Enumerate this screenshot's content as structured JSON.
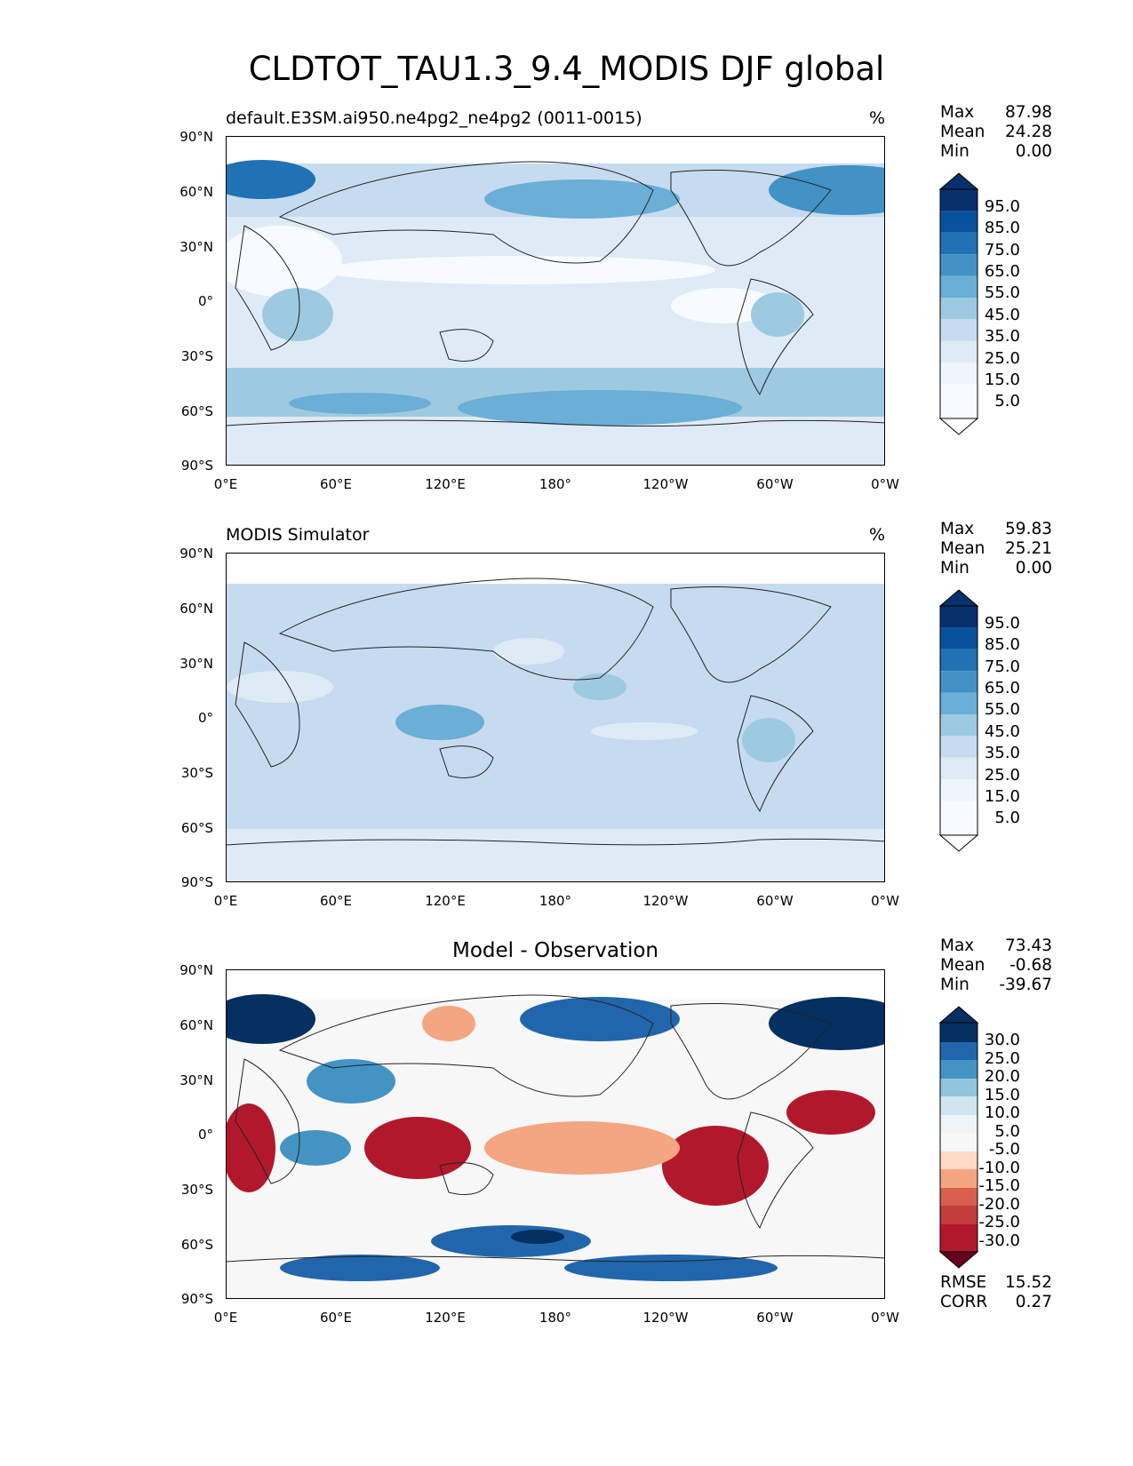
{
  "figure": {
    "title": "CLDTOT_TAU1.3_9.4_MODIS DJF global"
  },
  "axes": {
    "lat_labels": [
      "90°N",
      "60°N",
      "30°N",
      "0°",
      "30°S",
      "60°S",
      "90°S"
    ],
    "lon_labels": [
      "0°E",
      "60°E",
      "120°E",
      "180°",
      "120°W",
      "60°W",
      "0°W"
    ]
  },
  "panels": [
    {
      "title": "default.E3SM.ai950.ne4pg2_ne4pg2 (0011-0015)",
      "unit": "%",
      "stats": [
        {
          "label": "Max",
          "value": "87.98"
        },
        {
          "label": "Mean",
          "value": "24.28"
        },
        {
          "label": "Min",
          "value": "0.00"
        }
      ],
      "colorbar_labels": [
        "95.0",
        "85.0",
        "75.0",
        "65.0",
        "55.0",
        "45.0",
        "35.0",
        "25.0",
        "15.0",
        "5.0"
      ]
    },
    {
      "title": "MODIS Simulator",
      "unit": "%",
      "stats": [
        {
          "label": "Max",
          "value": "59.83"
        },
        {
          "label": "Mean",
          "value": "25.21"
        },
        {
          "label": "Min",
          "value": "0.00"
        }
      ],
      "colorbar_labels": [
        "95.0",
        "85.0",
        "75.0",
        "65.0",
        "55.0",
        "45.0",
        "35.0",
        "25.0",
        "15.0",
        "5.0"
      ]
    },
    {
      "title": "Model - Observation",
      "unit": "",
      "stats": [
        {
          "label": "Max",
          "value": "73.43"
        },
        {
          "label": "Mean",
          "value": "-0.68"
        },
        {
          "label": "Min",
          "value": "-39.67"
        }
      ],
      "colorbar_labels": [
        "30.0",
        "25.0",
        "20.0",
        "15.0",
        "10.0",
        "5.0",
        "-5.0",
        "-10.0",
        "-15.0",
        "-20.0",
        "-25.0",
        "-30.0"
      ],
      "metrics": [
        {
          "label": "RMSE",
          "value": "15.52"
        },
        {
          "label": "CORR",
          "value": "0.27"
        }
      ]
    }
  ],
  "colors": {
    "blues": [
      "#f7fbff",
      "#deebf7",
      "#c6dbef",
      "#9ecae1",
      "#6baed6",
      "#4292c6",
      "#2171b5",
      "#08519c",
      "#08306b"
    ],
    "diverging": [
      "#67001f",
      "#b2182b",
      "#d6604d",
      "#f4a582",
      "#fddbc7",
      "#f7f7f7",
      "#d1e5f0",
      "#92c5de",
      "#4393c3",
      "#2166ac",
      "#053061"
    ]
  }
}
